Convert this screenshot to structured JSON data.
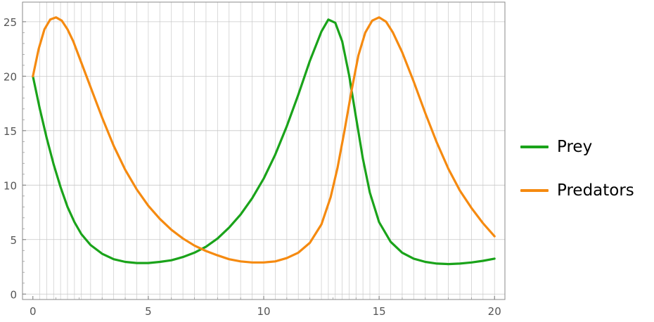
{
  "chart_data": {
    "type": "line",
    "title": "",
    "xlabel": "",
    "ylabel": "",
    "xlim": [
      -0.45,
      20.45
    ],
    "ylim": [
      -0.5,
      26.8
    ],
    "x_ticks": [
      0,
      5,
      10,
      15,
      20
    ],
    "x_tick_labels": [
      "0",
      "5",
      "10",
      "15",
      "20"
    ],
    "y_ticks": [
      0,
      5,
      10,
      15,
      20,
      25
    ],
    "y_tick_labels": [
      "0",
      "5",
      "10",
      "15",
      "20",
      "25"
    ],
    "grid": true,
    "legend": "right",
    "series": [
      {
        "name": "Prey",
        "color": "#1aa31a",
        "points": [
          [
            0,
            20
          ],
          [
            0.3,
            17
          ],
          [
            0.6,
            14.3
          ],
          [
            0.9,
            11.9
          ],
          [
            1.2,
            9.8
          ],
          [
            1.5,
            8
          ],
          [
            1.8,
            6.6
          ],
          [
            2.1,
            5.5
          ],
          [
            2.5,
            4.5
          ],
          [
            3,
            3.7
          ],
          [
            3.5,
            3.2
          ],
          [
            4,
            2.95
          ],
          [
            4.5,
            2.85
          ],
          [
            5,
            2.85
          ],
          [
            5.5,
            2.95
          ],
          [
            6,
            3.1
          ],
          [
            6.5,
            3.4
          ],
          [
            7,
            3.8
          ],
          [
            7.5,
            4.35
          ],
          [
            8,
            5.1
          ],
          [
            8.5,
            6.1
          ],
          [
            9,
            7.3
          ],
          [
            9.5,
            8.8
          ],
          [
            10,
            10.6
          ],
          [
            10.5,
            12.8
          ],
          [
            11,
            15.4
          ],
          [
            11.5,
            18.3
          ],
          [
            12,
            21.4
          ],
          [
            12.5,
            24.1
          ],
          [
            12.8,
            25.2
          ],
          [
            13.1,
            24.9
          ],
          [
            13.4,
            23.2
          ],
          [
            13.7,
            20.1
          ],
          [
            14,
            16.2
          ],
          [
            14.3,
            12.4
          ],
          [
            14.6,
            9.3
          ],
          [
            15,
            6.6
          ],
          [
            15.5,
            4.8
          ],
          [
            16,
            3.8
          ],
          [
            16.5,
            3.25
          ],
          [
            17,
            2.95
          ],
          [
            17.5,
            2.8
          ],
          [
            18,
            2.75
          ],
          [
            18.5,
            2.8
          ],
          [
            19,
            2.9
          ],
          [
            19.5,
            3.05
          ],
          [
            20,
            3.25
          ]
        ]
      },
      {
        "name": "Predators",
        "color": "#f58a10",
        "points": [
          [
            0,
            20
          ],
          [
            0.25,
            22.5
          ],
          [
            0.5,
            24.3
          ],
          [
            0.75,
            25.2
          ],
          [
            1,
            25.4
          ],
          [
            1.25,
            25.1
          ],
          [
            1.5,
            24.3
          ],
          [
            1.75,
            23.2
          ],
          [
            2,
            21.8
          ],
          [
            2.5,
            19
          ],
          [
            3,
            16.2
          ],
          [
            3.5,
            13.6
          ],
          [
            4,
            11.4
          ],
          [
            4.5,
            9.6
          ],
          [
            5,
            8.1
          ],
          [
            5.5,
            6.9
          ],
          [
            6,
            5.9
          ],
          [
            6.5,
            5.1
          ],
          [
            7,
            4.45
          ],
          [
            7.5,
            3.95
          ],
          [
            8,
            3.55
          ],
          [
            8.5,
            3.2
          ],
          [
            9,
            3
          ],
          [
            9.5,
            2.9
          ],
          [
            10,
            2.9
          ],
          [
            10.5,
            3
          ],
          [
            11,
            3.3
          ],
          [
            11.5,
            3.8
          ],
          [
            12,
            4.7
          ],
          [
            12.5,
            6.4
          ],
          [
            12.9,
            8.9
          ],
          [
            13.2,
            11.6
          ],
          [
            13.5,
            15
          ],
          [
            13.8,
            18.6
          ],
          [
            14.1,
            21.9
          ],
          [
            14.4,
            24
          ],
          [
            14.7,
            25.1
          ],
          [
            15,
            25.4
          ],
          [
            15.3,
            25
          ],
          [
            15.6,
            24
          ],
          [
            16,
            22.2
          ],
          [
            16.5,
            19.5
          ],
          [
            17,
            16.6
          ],
          [
            17.5,
            13.9
          ],
          [
            18,
            11.5
          ],
          [
            18.5,
            9.5
          ],
          [
            19,
            7.9
          ],
          [
            19.5,
            6.5
          ],
          [
            20,
            5.3
          ]
        ]
      }
    ]
  }
}
